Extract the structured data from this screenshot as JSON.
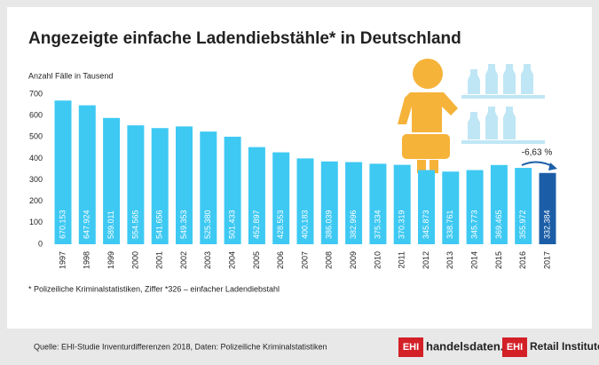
{
  "chart_data": {
    "type": "bar",
    "title": "Angezeigte einfache Ladendiebstähle* in Deutschland",
    "y_axis_label": "Anzahl Fälle in Tausend",
    "categories": [
      "1997",
      "1998",
      "1999",
      "2000",
      "2001",
      "2002",
      "2003",
      "2004",
      "2005",
      "2006",
      "2007",
      "2008",
      "2009",
      "2010",
      "2011",
      "2012",
      "2013",
      "2014",
      "2015",
      "2016",
      "2017"
    ],
    "values": [
      670.153,
      647.924,
      589.011,
      554.565,
      541.656,
      549.353,
      525.38,
      501.433,
      452.897,
      428.553,
      400.183,
      386.039,
      382.996,
      375.334,
      370.319,
      345.873,
      338.761,
      345.773,
      369.465,
      355.972,
      332.384
    ],
    "value_labels": [
      "670.153",
      "647.924",
      "589.011",
      "554.565",
      "541.656",
      "549.353",
      "525.380",
      "501.433",
      "452.897",
      "428.553",
      "400.183",
      "386.039",
      "382.996",
      "375.334",
      "370.319",
      "345.873",
      "338.761",
      "345.773",
      "369.465",
      "355.972",
      "332.384"
    ],
    "colors": [
      "#3ec9f3",
      "#3ec9f3",
      "#3ec9f3",
      "#3ec9f3",
      "#3ec9f3",
      "#3ec9f3",
      "#3ec9f3",
      "#3ec9f3",
      "#3ec9f3",
      "#3ec9f3",
      "#3ec9f3",
      "#3ec9f3",
      "#3ec9f3",
      "#3ec9f3",
      "#3ec9f3",
      "#3ec9f3",
      "#3ec9f3",
      "#3ec9f3",
      "#3ec9f3",
      "#3ec9f3",
      "#1b5ea7"
    ],
    "ylim": [
      0,
      700
    ],
    "yticks": [
      0,
      100,
      200,
      300,
      400,
      500,
      600,
      700
    ],
    "grid": false,
    "annotation": "-6,63 %",
    "footnote": "* Polizeiliche Kriminalstatistiken, Ziffer *326 – einfacher Ladendiebstahl",
    "source": "Quelle: EHI-Studie Inventurdifferenzen 2018, Daten: Polizeiliche Kriminalstatistiken",
    "logos": [
      {
        "badge": "EHI",
        "text": "handelsdaten.de"
      },
      {
        "badge": "EHI",
        "text": "Retail Institute"
      }
    ]
  }
}
